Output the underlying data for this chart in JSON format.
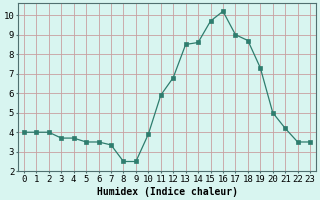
{
  "x": [
    0,
    1,
    2,
    3,
    4,
    5,
    6,
    7,
    8,
    9,
    10,
    11,
    12,
    13,
    14,
    15,
    16,
    17,
    18,
    19,
    20,
    21,
    22,
    23
  ],
  "y": [
    4.0,
    4.0,
    4.0,
    3.7,
    3.7,
    3.5,
    3.5,
    3.35,
    2.5,
    2.5,
    3.9,
    5.9,
    6.8,
    8.5,
    8.6,
    9.7,
    10.2,
    9.0,
    8.7,
    7.3,
    5.0,
    4.2,
    3.5,
    3.5
  ],
  "line_color": "#2e7d6e",
  "marker": "s",
  "markersize": 2.2,
  "bg_color": "#d8f5f0",
  "grid_color_major": "#c8a0a0",
  "grid_color_minor": "#b8ddd8",
  "xlabel": "Humidex (Indice chaleur)",
  "ylim": [
    2,
    10.6
  ],
  "xlim": [
    -0.5,
    23.5
  ],
  "yticks": [
    2,
    3,
    4,
    5,
    6,
    7,
    8,
    9,
    10
  ],
  "xticks": [
    0,
    1,
    2,
    3,
    4,
    5,
    6,
    7,
    8,
    9,
    10,
    11,
    12,
    13,
    14,
    15,
    16,
    17,
    18,
    19,
    20,
    21,
    22,
    23
  ],
  "xlabel_fontsize": 7,
  "tick_fontsize": 6.5
}
